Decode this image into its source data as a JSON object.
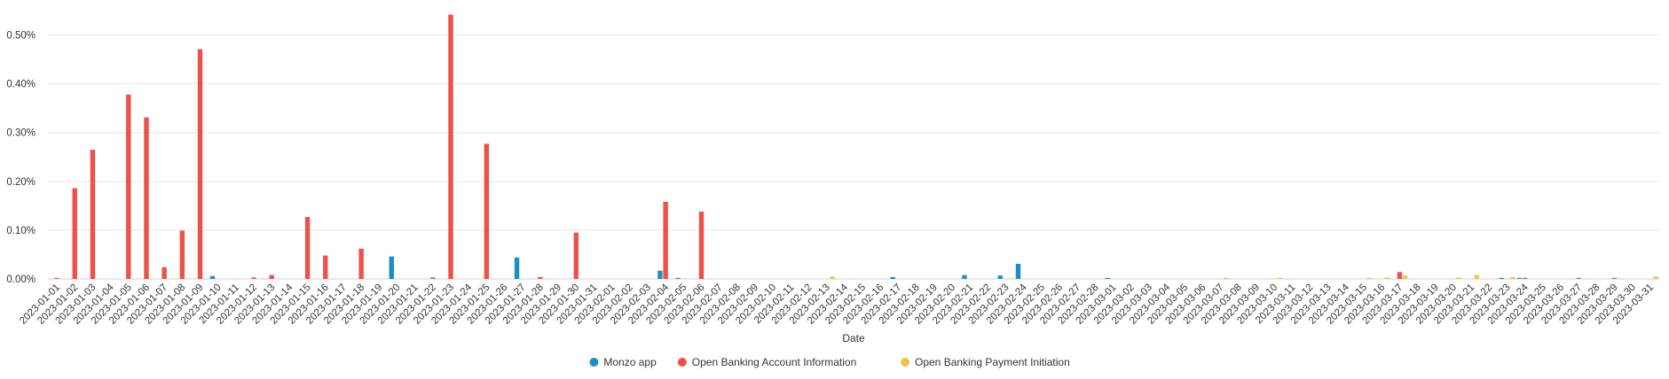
{
  "chart_data": {
    "type": "bar",
    "xlabel": "Date",
    "ylabel": "",
    "ylim": [
      0,
      0.55
    ],
    "y_ticks": [
      "0.00%",
      "0.10%",
      "0.20%",
      "0.30%",
      "0.40%",
      "0.50%"
    ],
    "y_tick_values": [
      0,
      0.1,
      0.2,
      0.3,
      0.4,
      0.5
    ],
    "grid": true,
    "legend_position": "bottom-center",
    "categories": [
      "2023-01-01",
      "2023-01-02",
      "2023-01-03",
      "2023-01-04",
      "2023-01-05",
      "2023-01-06",
      "2023-01-07",
      "2023-01-08",
      "2023-01-09",
      "2023-01-10",
      "2023-01-11",
      "2023-01-12",
      "2023-01-13",
      "2023-01-14",
      "2023-01-15",
      "2023-01-16",
      "2023-01-17",
      "2023-01-18",
      "2023-01-19",
      "2023-01-20",
      "2023-01-21",
      "2023-01-22",
      "2023-01-23",
      "2023-01-24",
      "2023-01-25",
      "2023-01-26",
      "2023-01-27",
      "2023-01-28",
      "2023-01-29",
      "2023-01-30",
      "2023-01-31",
      "2023-02-01",
      "2023-02-02",
      "2023-02-03",
      "2023-02-04",
      "2023-02-05",
      "2023-02-06",
      "2023-02-07",
      "2023-02-08",
      "2023-02-09",
      "2023-02-10",
      "2023-02-11",
      "2023-02-12",
      "2023-02-13",
      "2023-02-14",
      "2023-02-15",
      "2023-02-16",
      "2023-02-17",
      "2023-02-18",
      "2023-02-19",
      "2023-02-20",
      "2023-02-21",
      "2023-02-22",
      "2023-02-23",
      "2023-02-24",
      "2023-02-25",
      "2023-02-26",
      "2023-02-27",
      "2023-02-28",
      "2023-03-01",
      "2023-03-02",
      "2023-03-03",
      "2023-03-04",
      "2023-03-05",
      "2023-03-06",
      "2023-03-07",
      "2023-03-08",
      "2023-03-09",
      "2023-03-10",
      "2023-03-11",
      "2023-03-12",
      "2023-03-13",
      "2023-03-14",
      "2023-03-15",
      "2023-03-16",
      "2023-03-17",
      "2023-03-18",
      "2023-03-19",
      "2023-03-20",
      "2023-03-21",
      "2023-03-22",
      "2023-03-23",
      "2023-03-24",
      "2023-03-25",
      "2023-03-26",
      "2023-03-27",
      "2023-03-28",
      "2023-03-29",
      "2023-03-30",
      "2023-03-31"
    ],
    "series": [
      {
        "name": "Monzo app",
        "color": "#1a8fc6",
        "values": [
          0,
          0,
          0,
          0,
          0,
          0,
          0,
          0,
          0,
          0.006,
          0,
          0,
          0,
          0,
          0,
          0,
          0,
          0,
          0,
          0.046,
          0,
          0,
          0,
          0,
          0,
          0,
          0.044,
          0,
          0,
          0,
          0,
          0,
          0,
          0,
          0.017,
          0.002,
          0,
          0,
          0,
          0,
          0,
          0,
          0,
          0,
          0,
          0,
          0,
          0.004,
          0,
          0,
          0,
          0.008,
          0,
          0.007,
          0.031,
          0,
          0,
          0,
          0,
          0.002,
          0,
          0,
          0,
          0,
          0,
          0,
          0,
          0,
          0,
          0,
          0,
          0,
          0,
          0,
          0,
          0,
          0,
          0,
          0,
          0,
          0,
          0.002,
          0.002,
          0,
          0,
          0,
          0,
          0,
          0,
          0
        ]
      },
      {
        "name": "Open Banking Account Information",
        "color": "#f0504a",
        "values": [
          0.002,
          0.186,
          0.265,
          0,
          0.378,
          0.331,
          0.024,
          0.099,
          0.471,
          0,
          0,
          0.003,
          0.008,
          0,
          0.127,
          0.048,
          0,
          0.062,
          0,
          0,
          0,
          0.003,
          0.542,
          0,
          0.277,
          0,
          0,
          0.004,
          0,
          0.095,
          0,
          0,
          0,
          0,
          0.158,
          0,
          0.138,
          0,
          0,
          0,
          0,
          0,
          0,
          0,
          0,
          0,
          0,
          0,
          0,
          0,
          0,
          0,
          0,
          0,
          0,
          0,
          0,
          0,
          0,
          0,
          0,
          0,
          0,
          0,
          0,
          0,
          0,
          0,
          0,
          0,
          0,
          0,
          0,
          0,
          0,
          0.014,
          0,
          0,
          0,
          0,
          0,
          0,
          0.002,
          0,
          0,
          0.002,
          0,
          0.002,
          0,
          0
        ]
      },
      {
        "name": "Open Banking Payment Initiation",
        "color": "#f5c142",
        "values": [
          0,
          0,
          0,
          0,
          0,
          0,
          0,
          0,
          0,
          0,
          0,
          0,
          0,
          0,
          0,
          0,
          0,
          0,
          0,
          0,
          0,
          0,
          0,
          0,
          0,
          0,
          0,
          0,
          0,
          0,
          0,
          0,
          0,
          0,
          0,
          0,
          0,
          0,
          0,
          0,
          0,
          0,
          0,
          0.005,
          0,
          0,
          0,
          0,
          0,
          0,
          0,
          0,
          0,
          0,
          0,
          0,
          0,
          0,
          0,
          0,
          0,
          0,
          0,
          0,
          0,
          0.001,
          0,
          0,
          0.001,
          0,
          0,
          0,
          0,
          0.002,
          0.003,
          0.007,
          0,
          0,
          0.003,
          0.008,
          0,
          0.004,
          0,
          0,
          0,
          0,
          0,
          0,
          0,
          0.005
        ]
      }
    ]
  }
}
